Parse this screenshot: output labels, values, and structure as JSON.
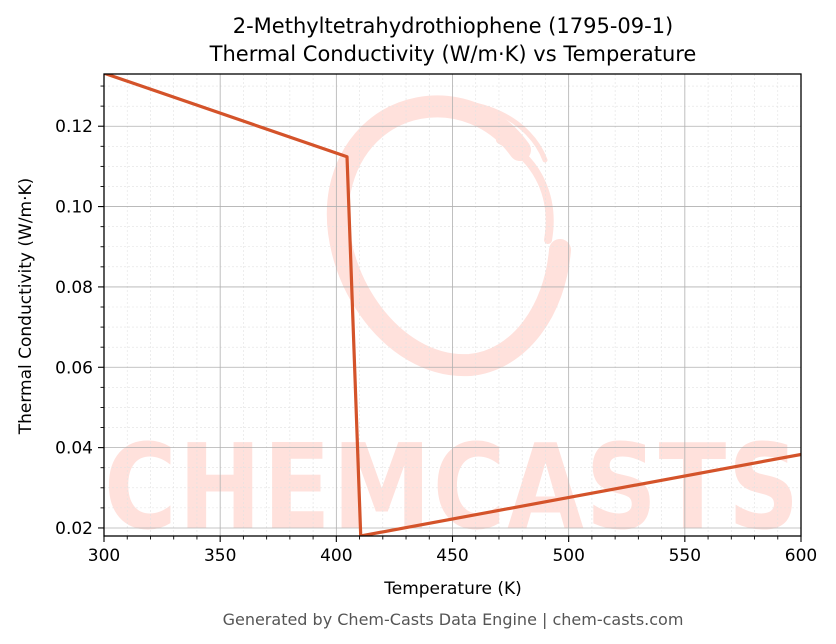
{
  "chart_data": {
    "type": "line",
    "title": "2-Methyltetrahydrothiophene (1795-09-1)",
    "subtitle": "Thermal Conductivity (W/m·K) vs Temperature",
    "xlabel": "Temperature (K)",
    "ylabel": "Thermal Conductivity (W/m·K)",
    "xlim": [
      300,
      600
    ],
    "ylim": [
      0.018,
      0.133
    ],
    "xticks": [
      300,
      350,
      400,
      450,
      500,
      550,
      600
    ],
    "yticks": [
      0.02,
      0.04,
      0.06,
      0.08,
      0.1,
      0.12
    ],
    "grid": true,
    "series": [
      {
        "color": "#d4532a",
        "x": [
          300,
          404.6,
          410.5,
          600
        ],
        "y": [
          0.1332,
          0.1124,
          0.018,
          0.0383
        ]
      }
    ]
  },
  "watermark": {
    "text": "CHEMCASTS",
    "color": "#ffe1dc"
  },
  "footer": "Generated by Chem-Casts Data Engine | chem-casts.com"
}
